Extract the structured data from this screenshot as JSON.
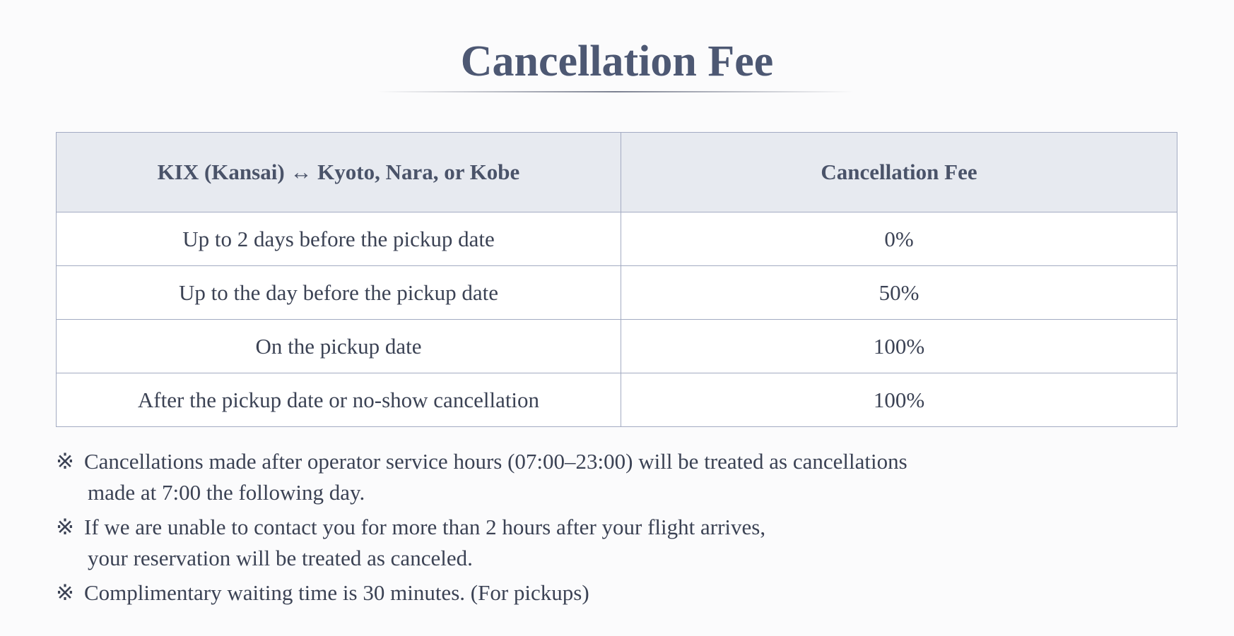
{
  "header": {
    "title": "Cancellation Fee"
  },
  "table": {
    "columns": [
      "KIX (Kansai) ↔ Kyoto, Nara, or Kobe",
      "Cancellation Fee"
    ],
    "rows": [
      [
        "Up to 2 days before the pickup date",
        "0%"
      ],
      [
        "Up to the day before the pickup date",
        "50%"
      ],
      [
        "On the pickup date",
        "100%"
      ],
      [
        "After the pickup date or no-show cancellation",
        "100%"
      ]
    ]
  },
  "notes": [
    {
      "marker": "※",
      "lines": [
        "Cancellations made after operator service hours (07:00–23:00) will be treated as cancellations",
        "made at 7:00 the following day."
      ]
    },
    {
      "marker": "※",
      "lines": [
        "If we are unable to contact you for more than 2 hours after your flight arrives,",
        "your reservation will be treated as canceled."
      ]
    },
    {
      "marker": "※",
      "lines": [
        "Complimentary waiting time is 30 minutes. (For pickups)"
      ]
    }
  ]
}
